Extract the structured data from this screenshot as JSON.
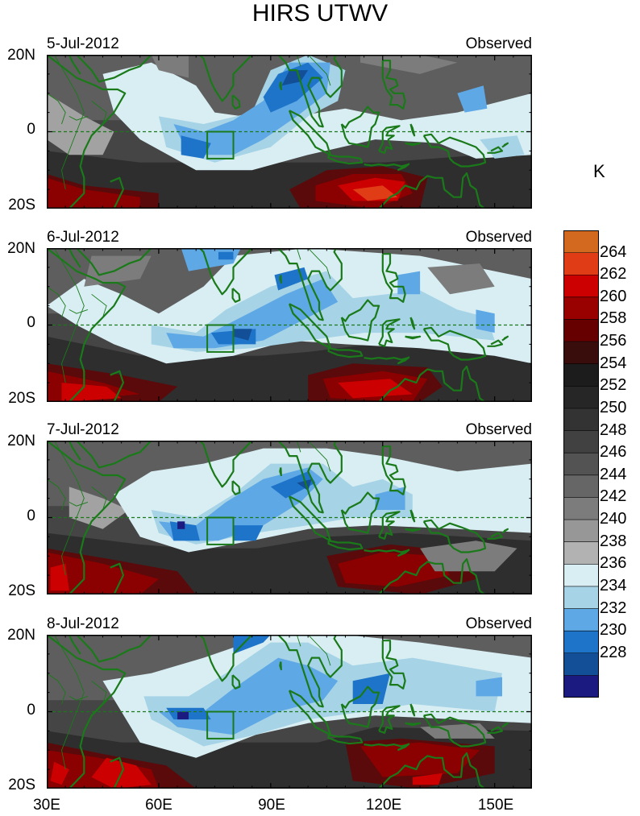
{
  "figure": {
    "title": "HIRS UTWV",
    "unit": "K",
    "panels": [
      {
        "date": "5-Jul-2012",
        "label": "Observed"
      },
      {
        "date": "6-Jul-2012",
        "label": "Observed"
      },
      {
        "date": "7-Jul-2012",
        "label": "Observed"
      },
      {
        "date": "8-Jul-2012",
        "label": "Observed"
      }
    ],
    "lat_labels": [
      "20N",
      "0",
      "20S"
    ],
    "lon_labels": [
      "30E",
      "60E",
      "90E",
      "120E",
      "150E"
    ],
    "colorbar": {
      "labels": [
        "264",
        "262",
        "260",
        "258",
        "256",
        "254",
        "252",
        "250",
        "248",
        "246",
        "244",
        "242",
        "240",
        "238",
        "236",
        "234",
        "232",
        "230",
        "228"
      ],
      "colors": [
        "#d2691e",
        "#e03c16",
        "#cc0000",
        "#990000",
        "#660000",
        "#3a0d0d",
        "#1c1c1c",
        "#262626",
        "#333333",
        "#414141",
        "#535353",
        "#666666",
        "#7c7c7c",
        "#979797",
        "#b2b2b2",
        "#d8eef3",
        "#a6d3e6",
        "#5fa8e6",
        "#1e74c8",
        "#124f96",
        "#1a1a80"
      ]
    }
  },
  "colors": {
    "coast": "#1a7a1a",
    "box": "#1a7a1a"
  }
}
